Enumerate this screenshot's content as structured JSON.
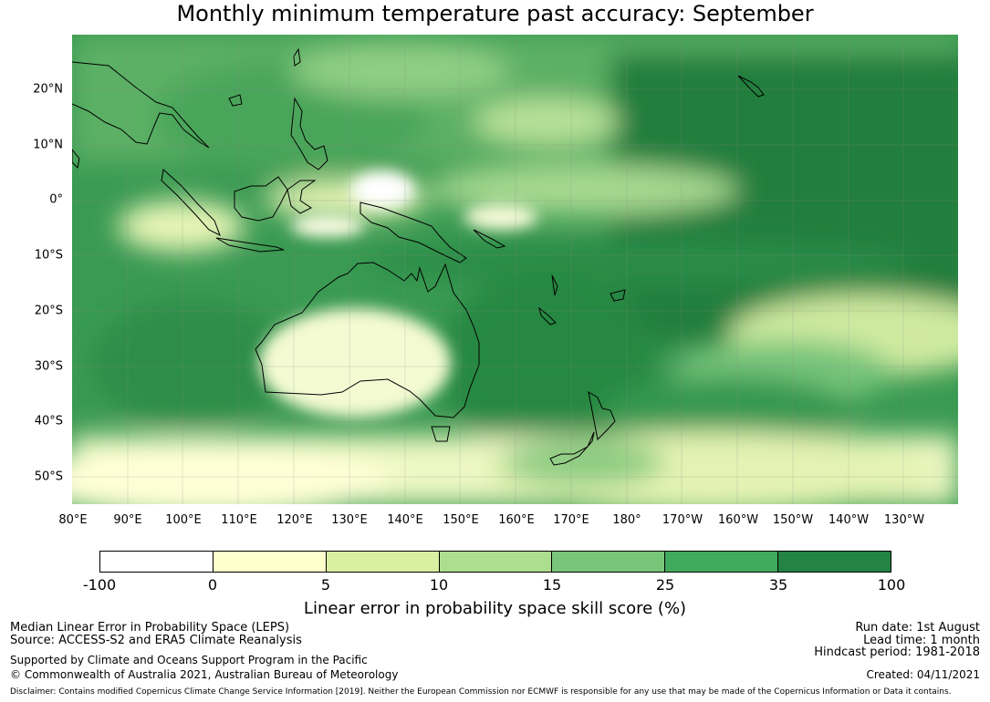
{
  "title": "Monthly minimum temperature past accuracy: September",
  "map": {
    "latitude_labels": [
      "20°N",
      "10°N",
      "0°",
      "10°S",
      "20°S",
      "30°S",
      "40°S",
      "50°S"
    ],
    "longitude_labels": [
      "80°E",
      "90°E",
      "100°E",
      "110°E",
      "120°E",
      "130°E",
      "140°E",
      "150°E",
      "160°E",
      "170°E",
      "180°",
      "170°W",
      "160°W",
      "150°W",
      "140°W",
      "130°W"
    ],
    "colors": {
      "ocean_high_skill": "#238b45",
      "land_low_skill": "#ffffff"
    }
  },
  "colorbar": {
    "ticks": [
      "-100",
      "0",
      "5",
      "10",
      "15",
      "25",
      "35",
      "100"
    ],
    "colors": [
      "#ffffff",
      "#ffffcc",
      "#d9f0a3",
      "#addd8e",
      "#78c679",
      "#41ab5d",
      "#238443"
    ],
    "label": "Linear error in probability space skill score (%)"
  },
  "footer": {
    "left1": "Median Linear Error in Probability Space (LEPS)",
    "left2": "Source: ACCESS-S2 and ERA5 Climate Reanalysis",
    "left3": "Supported by Climate and Oceans Support Program in the Pacific",
    "left4": "© Commonwealth of Australia 2021, Australian Bureau of Meteorology",
    "right1": "Run date: 1st August",
    "right2": "Lead time: 1 month",
    "right3": "Hindcast period: 1981-2018",
    "right4": "Created: 04/11/2021",
    "disclaimer": "Disclaimer: Contains modified Copernicus Climate Change Service Information [2019]. Neither the European Commission nor ECMWF is responsible for any use that may be made of the Copernicus Information or Data it contains."
  }
}
